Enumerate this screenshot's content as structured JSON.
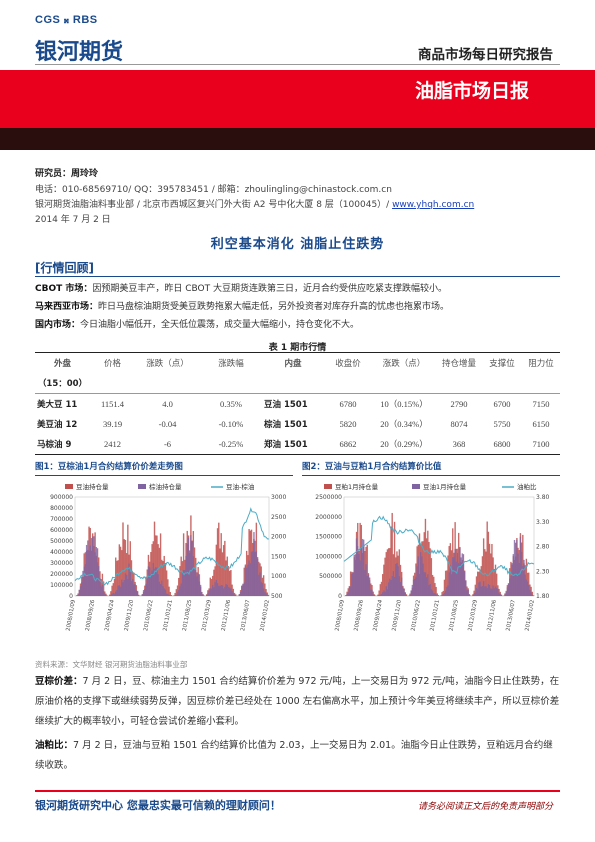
{
  "header": {
    "logo_text": "CGS 𝄪 RBS",
    "company": "银河期货",
    "report_type": "商品市场每日研究报告",
    "banner_title": "油脂市场日报"
  },
  "meta": {
    "researcher_label": "研究员：",
    "researcher": "周玲玲",
    "contact": "电话：010-68569710/ QQ：395783451 / 邮箱：zhoulingling@chinastock.com.cn",
    "address": "银河期货油脂油料事业部 / 北京市西城区复兴门外大街 A2 号中化大厦 8 层（100045）/ ",
    "website": "www.yhqh.com.cn",
    "date": "2014 年 7 月 2 日"
  },
  "headline": "利空基本消化  油脂止住跌势",
  "section_title": "[行情回顾]",
  "review": [
    {
      "label": "CBOT 市场：",
      "text": "因预期美豆丰产，昨日 CBOT 大豆期货连跌第三日，近月合约受供应吃紧支撑跌幅较小。"
    },
    {
      "label": "马来西亚市场：",
      "text": "昨日马盘棕油期货受美豆跌势拖累大幅走低，另外投资者对库存升高的忧虑也拖累市场。"
    },
    {
      "label": "国内市场：",
      "text": "今日油脂小幅低开，全天低位震荡，成交量大幅缩小，持仓变化不大。"
    }
  ],
  "table": {
    "caption": "表 1   期市行情",
    "headers_left": [
      "外盘",
      "价格",
      "涨跌（点）",
      "涨跌幅"
    ],
    "headers_right": [
      "内盘",
      "收盘价",
      "涨跌（点）",
      "持仓增量",
      "支撑位",
      "阻力位"
    ],
    "time_label": "（15：00）",
    "rows": [
      {
        "ext": "美大豆 11",
        "price": "1151.4",
        "chg": "4.0",
        "pct": "0.35%",
        "dom": "豆油 1501",
        "close": "6780",
        "dchg": "10（0.15%）",
        "oi": "2790",
        "sup": "6700",
        "res": "7150"
      },
      {
        "ext": "美豆油 12",
        "price": "39.19",
        "chg": "-0.04",
        "pct": "-0.10%",
        "dom": "棕油 1501",
        "close": "5820",
        "dchg": "20（0.34%）",
        "oi": "8074",
        "sup": "5750",
        "res": "6150"
      },
      {
        "ext": "马棕油 9",
        "price": "2412",
        "chg": "-6",
        "pct": "-0.25%",
        "dom": "郑油 1501",
        "close": "6862",
        "dchg": "20（0.29%）",
        "oi": "368",
        "sup": "6800",
        "res": "7100"
      }
    ]
  },
  "fig1": {
    "caption": "图1：豆棕油1月合约结算价价差走势图",
    "legend": [
      "豆油持仓量",
      "棕油持仓量",
      "豆油-棕油"
    ],
    "left_ticks": [
      "900000",
      "800000",
      "700000",
      "600000",
      "500000",
      "400000",
      "300000",
      "200000",
      "100000",
      "0"
    ],
    "right_ticks": [
      "3000",
      "2500",
      "2000",
      "1500",
      "1000",
      "500"
    ],
    "date_labels": [
      "2008/01/09",
      "2008/09/26",
      "2009/04/24",
      "2009/11/20",
      "2010/06/22",
      "2011/01/21",
      "2011/08/25",
      "2012/03/29",
      "2012/11/06",
      "2013/06/07",
      "2014/01/02"
    ]
  },
  "fig2": {
    "caption": "图2：豆油与豆粕1月合约结算价比值",
    "legend": [
      "豆粕1月持仓量",
      "豆油1月持仓量",
      "油粕比"
    ],
    "left_ticks": [
      "2500000",
      "2000000",
      "1500000",
      "1000000",
      "500000",
      "0"
    ],
    "right_ticks": [
      "3.80",
      "3.30",
      "2.80",
      "2.30",
      "1.80"
    ],
    "date_labels": [
      "2008/01/09",
      "2008/09/26",
      "2009/04/24",
      "2009/11/20",
      "2010/06/22",
      "2011/01/21",
      "2011/08/25",
      "2012/03/29",
      "2012/11/06",
      "2013/06/07",
      "2014/01/02"
    ]
  },
  "source": "资料来源：文华财经    银河期货油脂油料事业部",
  "analysis": [
    {
      "label": "豆棕价差：",
      "text": "7 月 2 日，豆、棕油主力 1501 合约结算价价差为 972 元/吨，上一交易日为 972 元/吨，油脂今日止住跌势，在原油价格的支撑下或继续弱势反弹，因豆棕价差已经处在 1000 左右偏高水平，加上预计今年美豆将继续丰产，所以豆棕价差继续扩大的概率较小，可轻仓尝试价差缩小套利。"
    },
    {
      "label": "油粕比：",
      "text": "7 月 2 日，豆油与豆粕 1501 合约结算价比值为 2.03，上一交易日为 2.01。油脂今日止住跌势，豆粕远月合约继续收跌。"
    }
  ],
  "footer": {
    "left": "银河期货研究中心  您最忠实最可信赖的理财顾问！",
    "right": "请务必阅读正文后的免责声明部分"
  },
  "colors": {
    "red": "#e8001c",
    "blue": "#1a4a8c",
    "soy_oi": "#c0504d",
    "palm_oi": "#8064a2",
    "line": "#4bacc6"
  }
}
